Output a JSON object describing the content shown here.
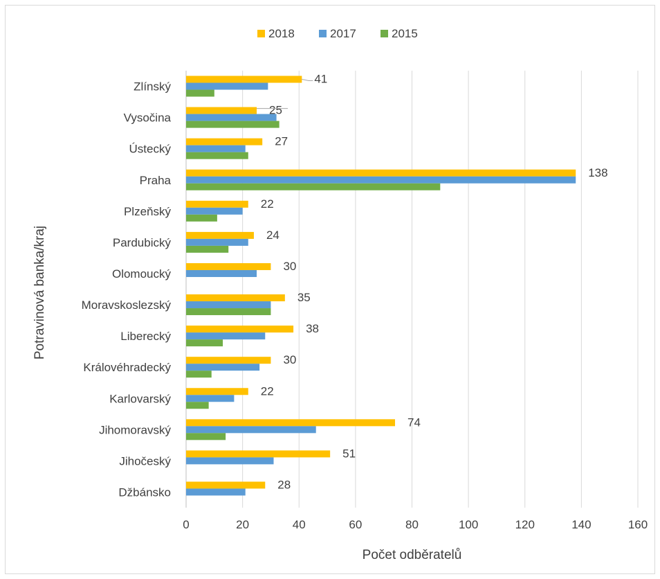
{
  "chart_data": {
    "type": "bar",
    "orientation": "horizontal",
    "xlabel": "Počet odběratelů",
    "ylabel": "Potravinová banka/kraj",
    "xlim": [
      0,
      160
    ],
    "xticks": [
      0,
      20,
      40,
      60,
      80,
      100,
      120,
      140,
      160
    ],
    "grid": true,
    "legend_position": "top",
    "categories": [
      "Zlínský",
      "Vysočina",
      "Ústecký",
      "Praha",
      "Plzeňský",
      "Pardubický",
      "Olomoucký",
      "Moravskoslezský",
      "Liberecký",
      "Královéhradecký",
      "Karlovarský",
      "Jihomoravský",
      "Jihočeský",
      "Džbánsko"
    ],
    "series": [
      {
        "name": "2018",
        "color": "#ffc000",
        "values": [
          41,
          25,
          27,
          138,
          22,
          24,
          30,
          35,
          38,
          30,
          22,
          74,
          51,
          28
        ],
        "labels": true
      },
      {
        "name": "2017",
        "color": "#5b9bd5",
        "values": [
          29,
          32,
          21,
          138,
          20,
          22,
          25,
          30,
          28,
          26,
          17,
          46,
          31,
          21
        ],
        "labels": false
      },
      {
        "name": "2015",
        "color": "#70ad47",
        "values": [
          10,
          33,
          22,
          90,
          11,
          15,
          0,
          30,
          13,
          9,
          8,
          14,
          0,
          0
        ],
        "labels": false
      }
    ]
  }
}
